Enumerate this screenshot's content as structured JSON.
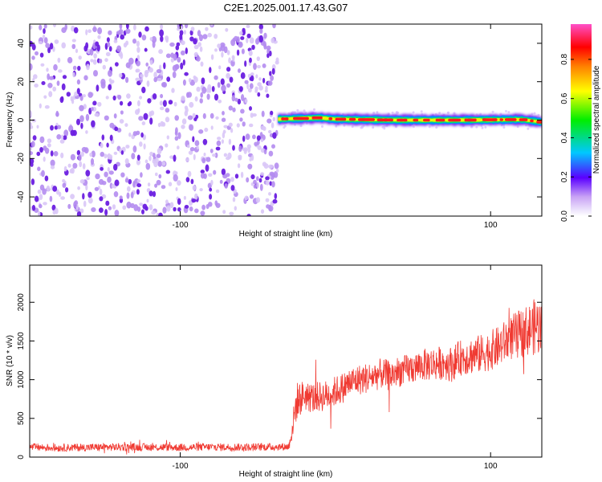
{
  "title": "C2E1.2025.001.17.43.G07",
  "colors": {
    "scatter_low": "#d9c6f7",
    "scatter_mid": "#b48cf0",
    "scatter_high": "#6a1ee0",
    "snr_line": "#f03a32"
  },
  "chart_data": [
    {
      "type": "heatmap",
      "title": "C2E1.2025.001.17.43.G07",
      "xlabel": "Height of straight line (km)",
      "ylabel": "Frequency (Hz)",
      "xlim": [
        -197,
        133
      ],
      "ylim": [
        -50,
        50
      ],
      "x_ticks": [
        -100,
        100
      ],
      "x_tick_labels": [
        "-100",
        "100"
      ],
      "y_ticks": [
        -40,
        -20,
        0,
        20,
        40
      ],
      "y_tick_labels": [
        "-40",
        "-20",
        "0",
        "20",
        "40"
      ],
      "noise_region": {
        "x": [
          -197,
          -37
        ],
        "frequency": [
          -50,
          50
        ],
        "amplitude": [
          0.02,
          0.12
        ]
      },
      "signal_band": {
        "x": [
          -37,
          133
        ],
        "center_frequency": [
          [
            -37,
            0.5
          ],
          [
            -10,
            1.2
          ],
          [
            0,
            0.5
          ],
          [
            40,
            0
          ],
          [
            80,
            0
          ],
          [
            120,
            0.3
          ],
          [
            133,
            -1
          ]
        ],
        "peak_amplitude": 0.97
      },
      "colorbar": {
        "label": "Normalized spectral amplitude",
        "range": [
          0.0,
          0.98
        ],
        "ticks": [
          0.0,
          0.2,
          0.4,
          0.6,
          0.8
        ],
        "tick_labels": [
          "0.0",
          "0.2",
          "0.4",
          "0.6",
          "0.8"
        ]
      },
      "grid": false
    },
    {
      "type": "line",
      "xlabel": "Height of straight line (km)",
      "ylabel": "SNR (10 * v/v)",
      "xlim": [
        -197,
        133
      ],
      "ylim": [
        0,
        2480
      ],
      "x_ticks": [
        -100,
        100
      ],
      "x_tick_labels": [
        "-100",
        "100"
      ],
      "y_ticks": [
        0,
        500,
        1000,
        1500,
        2000
      ],
      "y_tick_labels": [
        "0",
        "500",
        "1000",
        "1500",
        "2000"
      ],
      "grid": false,
      "series": [
        {
          "x": [
            -197,
            -180,
            -160,
            -140,
            -120,
            -100,
            -80,
            -60,
            -40,
            -30,
            -28,
            -25,
            -20,
            -15,
            -10,
            -5,
            0,
            5,
            10,
            15,
            20,
            25,
            30,
            35,
            40,
            45,
            50,
            55,
            60,
            65,
            70,
            75,
            80,
            85,
            90,
            95,
            100,
            105,
            110,
            115,
            120,
            125,
            130,
            133
          ],
          "values": [
            130,
            120,
            125,
            130,
            128,
            125,
            130,
            128,
            132,
            135,
            350,
            720,
            800,
            760,
            780,
            800,
            850,
            900,
            970,
            1000,
            1020,
            1050,
            1080,
            1050,
            1100,
            1120,
            1150,
            1180,
            1200,
            1210,
            1220,
            1200,
            1280,
            1300,
            1320,
            1340,
            1380,
            1420,
            1500,
            1560,
            1600,
            1650,
            1700,
            1650
          ],
          "band_halfwidth": [
            50,
            50,
            50,
            50,
            50,
            50,
            50,
            50,
            50,
            50,
            150,
            250,
            200,
            200,
            200,
            200,
            200,
            200,
            200,
            200,
            200,
            200,
            200,
            200,
            200,
            200,
            200,
            200,
            220,
            220,
            220,
            230,
            230,
            240,
            250,
            250,
            260,
            270,
            280,
            300,
            320,
            340,
            380,
            380
          ]
        }
      ]
    }
  ]
}
